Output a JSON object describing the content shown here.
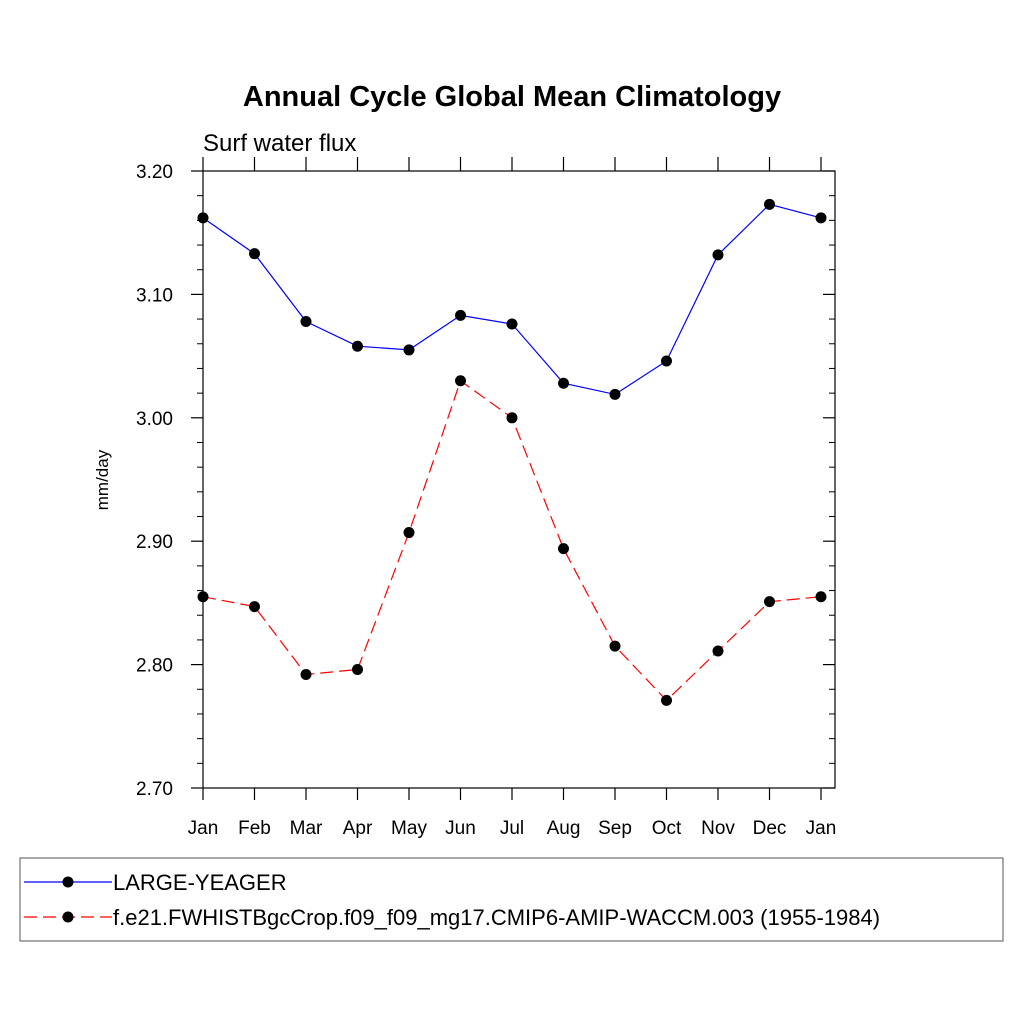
{
  "chart_data": {
    "type": "line",
    "title": "Annual Cycle Global Mean Climatology",
    "subtitle": "Surf water flux",
    "xlabel": "",
    "ylabel": "mm/day",
    "categories": [
      "Jan",
      "Feb",
      "Mar",
      "Apr",
      "May",
      "Jun",
      "Jul",
      "Aug",
      "Sep",
      "Oct",
      "Nov",
      "Dec",
      "Jan"
    ],
    "ylim": [
      2.7,
      3.2
    ],
    "yticks": [
      "2.70",
      "2.80",
      "2.90",
      "3.00",
      "3.10",
      "3.20"
    ],
    "ytick_values": [
      2.7,
      2.8,
      2.9,
      3.0,
      3.1,
      3.2
    ],
    "grid": false,
    "legend_position": "bottom",
    "series": [
      {
        "name": "LARGE-YEAGER",
        "color": "#0000ff",
        "dashed": false,
        "values": [
          3.162,
          3.133,
          3.078,
          3.058,
          3.055,
          3.083,
          3.076,
          3.028,
          3.019,
          3.046,
          3.132,
          3.173,
          3.162
        ]
      },
      {
        "name": "f.e21.FWHISTBgcCrop.f09_f09_mg17.CMIP6-AMIP-WACCM.003 (1955-1984)",
        "color": "#ff0000",
        "dashed": true,
        "values": [
          2.855,
          2.847,
          2.792,
          2.796,
          2.907,
          3.03,
          3.0,
          2.894,
          2.815,
          2.771,
          2.811,
          2.851,
          2.855
        ]
      }
    ]
  }
}
